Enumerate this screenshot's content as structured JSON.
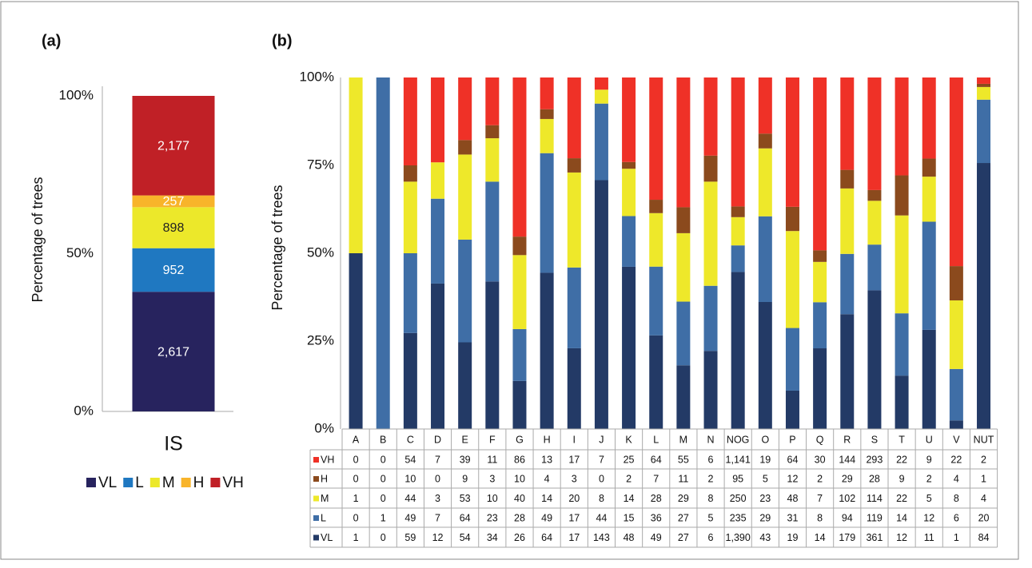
{
  "chart_data": [
    {
      "type": "bar",
      "stacked": "percent",
      "panel_label": "(a)",
      "ylabel": "Percentage of trees",
      "categories": [
        "IS"
      ],
      "series": [
        {
          "name": "VL",
          "color": "#27235e",
          "values": [
            2617
          ],
          "value_labels": [
            "2,617"
          ]
        },
        {
          "name": "L",
          "color": "#1f78c1",
          "values": [
            952
          ]
        },
        {
          "name": "M",
          "color": "#ece82a",
          "values": [
            898
          ]
        },
        {
          "name": "H",
          "color": "#f8b42a",
          "values": [
            257
          ]
        },
        {
          "name": "VH",
          "color": "#c02026",
          "values": [
            2177
          ],
          "value_labels": [
            "2,177"
          ]
        }
      ],
      "ylim": [
        0,
        100
      ],
      "yticks": [
        {
          "value": 0,
          "label": "0%"
        },
        {
          "value": 50,
          "label": "50%"
        },
        {
          "value": 100,
          "label": "100%"
        }
      ]
    },
    {
      "type": "bar",
      "stacked": "percent",
      "panel_label": "(b)",
      "ylabel": "Percentage of trees",
      "categories": [
        "A",
        "B",
        "C",
        "D",
        "E",
        "F",
        "G",
        "H",
        "I",
        "J",
        "K",
        "L",
        "M",
        "N",
        "NOG",
        "O",
        "P",
        "Q",
        "R",
        "S",
        "T",
        "U",
        "V",
        "NUT"
      ],
      "series": [
        {
          "name": "VL",
          "color": "#233a66",
          "values": [
            1,
            0,
            59,
            12,
            54,
            34,
            26,
            64,
            17,
            143,
            48,
            49,
            27,
            6,
            1390,
            43,
            19,
            14,
            179,
            361,
            12,
            11,
            1,
            84
          ],
          "value_labels": [
            "1",
            "0",
            "59",
            "12",
            "54",
            "34",
            "26",
            "64",
            "17",
            "143",
            "48",
            "49",
            "27",
            "6",
            "1,390",
            "43",
            "19",
            "14",
            "179",
            "361",
            "12",
            "11",
            "1",
            "84"
          ]
        },
        {
          "name": "L",
          "color": "#3f6ea6",
          "values": [
            0,
            1,
            49,
            7,
            64,
            23,
            28,
            49,
            17,
            44,
            15,
            36,
            27,
            5,
            235,
            29,
            31,
            8,
            94,
            119,
            14,
            12,
            6,
            20
          ]
        },
        {
          "name": "M",
          "color": "#eee82a",
          "values": [
            1,
            0,
            44,
            3,
            53,
            10,
            40,
            14,
            20,
            8,
            14,
            28,
            29,
            8,
            250,
            23,
            48,
            7,
            102,
            114,
            22,
            5,
            8,
            4
          ]
        },
        {
          "name": "H",
          "color": "#8b4a1d",
          "values": [
            0,
            0,
            10,
            0,
            9,
            3,
            10,
            4,
            3,
            0,
            2,
            7,
            11,
            2,
            95,
            5,
            12,
            2,
            29,
            28,
            9,
            2,
            4,
            1
          ]
        },
        {
          "name": "VH",
          "color": "#ef3127",
          "values": [
            0,
            0,
            54,
            7,
            39,
            11,
            86,
            13,
            17,
            7,
            25,
            64,
            55,
            6,
            1141,
            19,
            64,
            30,
            144,
            293,
            22,
            9,
            22,
            2
          ],
          "value_labels": [
            "0",
            "0",
            "54",
            "7",
            "39",
            "11",
            "86",
            "13",
            "17",
            "7",
            "25",
            "64",
            "55",
            "6",
            "1,141",
            "19",
            "64",
            "30",
            "144",
            "293",
            "22",
            "9",
            "22",
            "2"
          ]
        }
      ],
      "ylim": [
        0,
        100
      ],
      "yticks": [
        {
          "value": 0,
          "label": "0%"
        },
        {
          "value": 25,
          "label": "25%"
        },
        {
          "value": 50,
          "label": "50%"
        },
        {
          "value": 75,
          "label": "75%"
        },
        {
          "value": 100,
          "label": "100%"
        }
      ]
    }
  ]
}
